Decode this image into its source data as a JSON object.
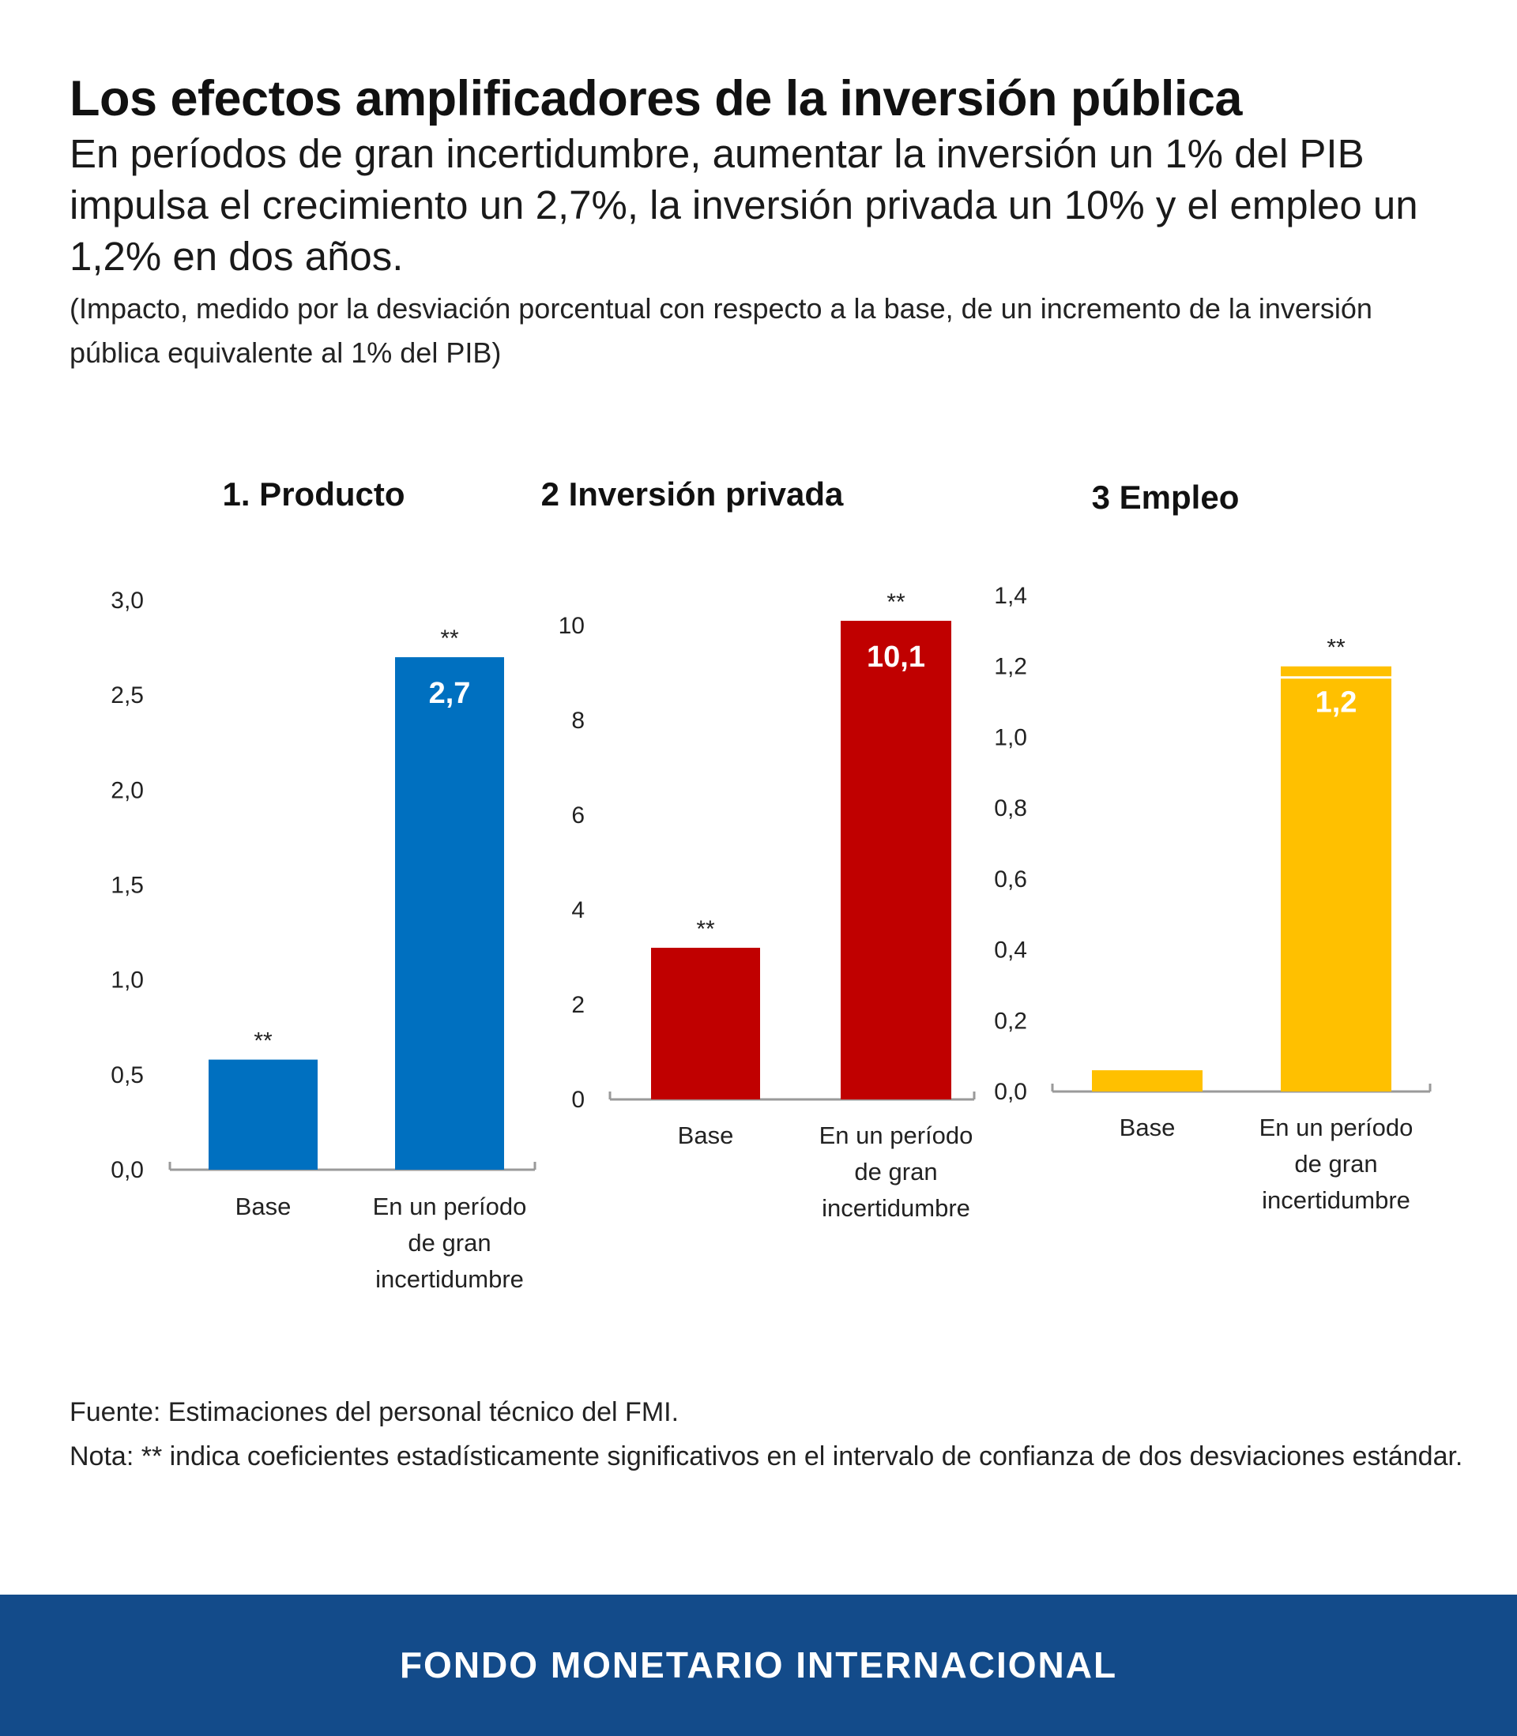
{
  "header": {
    "title": "Los efectos amplificadores de la inversión pública",
    "subtitle": "En períodos de gran incertidumbre, aumentar la inversión un 1% del PIB impulsa el crecimiento un 2,7%, la inversión privada un 10% y el empleo un 1,2% en dos años.",
    "note": "(Impacto, medido por la desviación porcentual con respecto a la base, de un incremento de la inversión pública equivalente al 1% del PIB)"
  },
  "chart_data": [
    {
      "type": "bar",
      "title": "1. Producto",
      "categories": [
        "Base",
        "En un período de gran incertidumbre"
      ],
      "values": [
        0.58,
        2.7
      ],
      "value_labels": [
        "",
        "2,7"
      ],
      "significance": [
        "**",
        "**"
      ],
      "yticks": [
        "0,0",
        "0,5",
        "1,0",
        "1,5",
        "2,0",
        "2,5",
        "3,0"
      ],
      "ylim": [
        0,
        3.0
      ],
      "color": "#0070c0"
    },
    {
      "type": "bar",
      "title": "2 Inversión privada",
      "categories": [
        "Base",
        "En un período de gran incertidumbre"
      ],
      "values": [
        3.2,
        10.1
      ],
      "value_labels": [
        "",
        "10,1"
      ],
      "significance": [
        "**",
        "**"
      ],
      "yticks": [
        "0",
        "2",
        "4",
        "6",
        "8",
        "10"
      ],
      "ylim": [
        0,
        10
      ],
      "color": "#c00000"
    },
    {
      "type": "bar",
      "title": "3 Empleo",
      "categories": [
        "Base",
        "En un período de gran incertidumbre"
      ],
      "values": [
        0.06,
        1.2
      ],
      "value_labels": [
        "",
        "1,2"
      ],
      "significance": [
        "",
        "**"
      ],
      "yticks": [
        "0,0",
        "0,2",
        "0,4",
        "0,6",
        "0,8",
        "1,0",
        "1,2",
        "1,4"
      ],
      "ylim": [
        0,
        1.4
      ],
      "color": "#ffc000"
    }
  ],
  "footer": {
    "source": "Fuente: Estimaciones del personal técnico del FMI.",
    "note": "Nota:  ** indica coeficientes estadísticamente significativos en el intervalo de confianza de dos desviaciones estándar."
  },
  "banner": {
    "text": "FONDO MONETARIO INTERNACIONAL",
    "color": "#134b8a"
  }
}
